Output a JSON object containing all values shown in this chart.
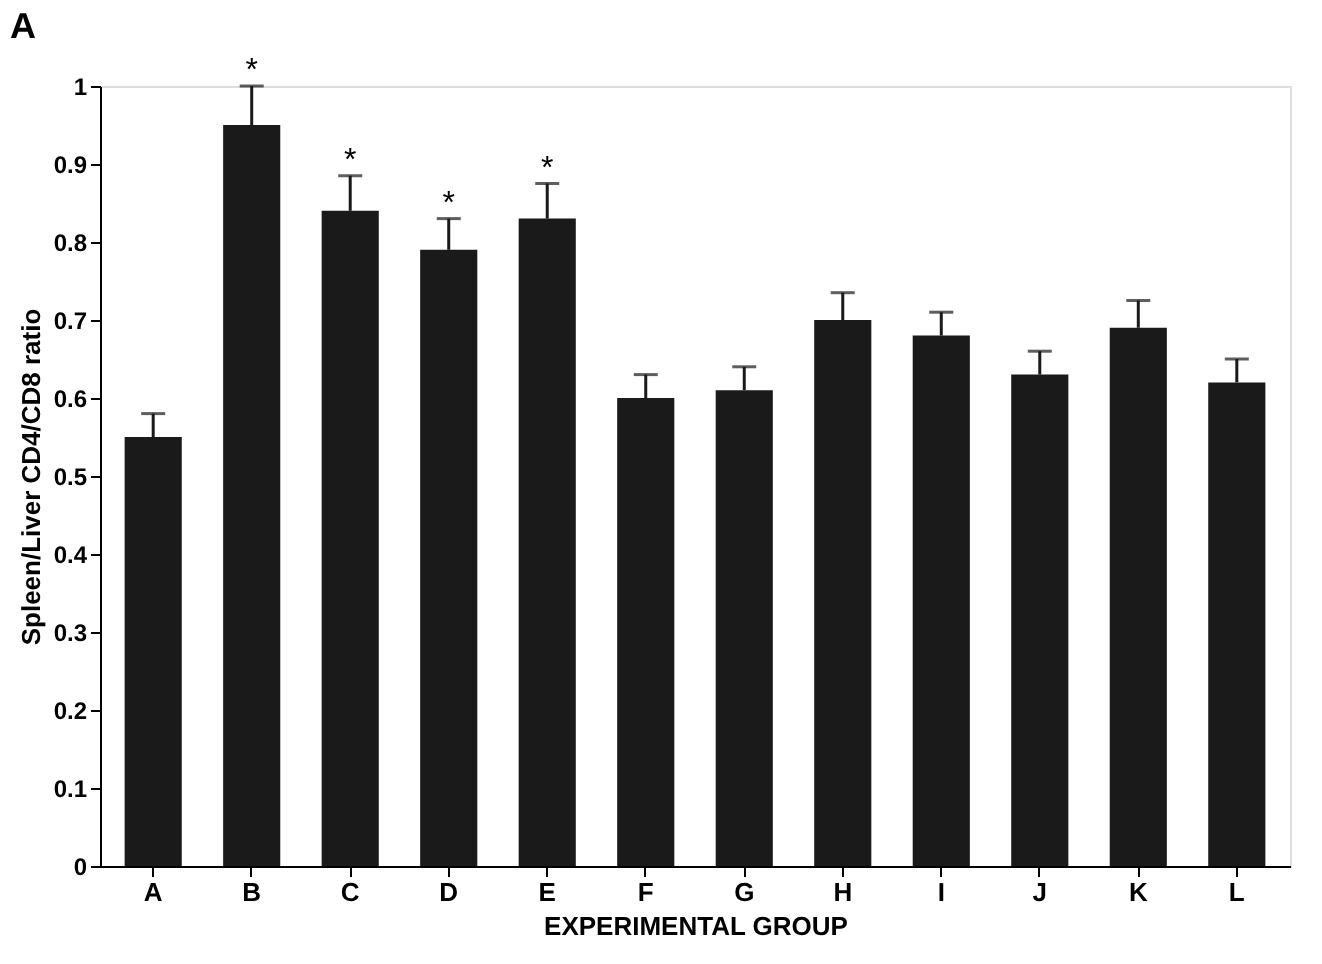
{
  "chart_data": {
    "type": "bar",
    "title": "A",
    "xlabel": "EXPERIMENTAL GROUP",
    "ylabel": "Spleen/Liver CD4/CD8 ratio",
    "categories": [
      "A",
      "B",
      "C",
      "D",
      "E",
      "F",
      "G",
      "H",
      "I",
      "J",
      "K",
      "L"
    ],
    "values": [
      0.55,
      0.95,
      0.84,
      0.79,
      0.83,
      0.6,
      0.61,
      0.7,
      0.68,
      0.63,
      0.69,
      0.62
    ],
    "errors": [
      [
        0.55,
        0.58
      ],
      [
        0.95,
        1.0
      ],
      [
        0.84,
        0.885
      ],
      [
        0.79,
        0.83
      ],
      [
        0.83,
        0.875
      ],
      [
        0.6,
        0.63
      ],
      [
        0.61,
        0.64
      ],
      [
        0.7,
        0.735
      ],
      [
        0.68,
        0.71
      ],
      [
        0.63,
        0.66
      ],
      [
        0.69,
        0.725
      ],
      [
        0.62,
        0.65
      ]
    ],
    "color": "#1a1a1a",
    "ylim": [
      0,
      1
    ],
    "yticks": [
      0,
      0.1,
      0.2,
      0.3,
      0.4,
      0.5,
      0.6,
      0.7,
      0.8,
      0.9,
      1
    ],
    "grid": false,
    "annotations": [
      {
        "text": "*",
        "x": "B",
        "y": 1.0
      },
      {
        "text": "*",
        "x": "C",
        "y": 0.885
      },
      {
        "text": "*",
        "x": "D",
        "y": 0.83
      },
      {
        "text": "*",
        "x": "E",
        "y": 0.875
      }
    ]
  }
}
